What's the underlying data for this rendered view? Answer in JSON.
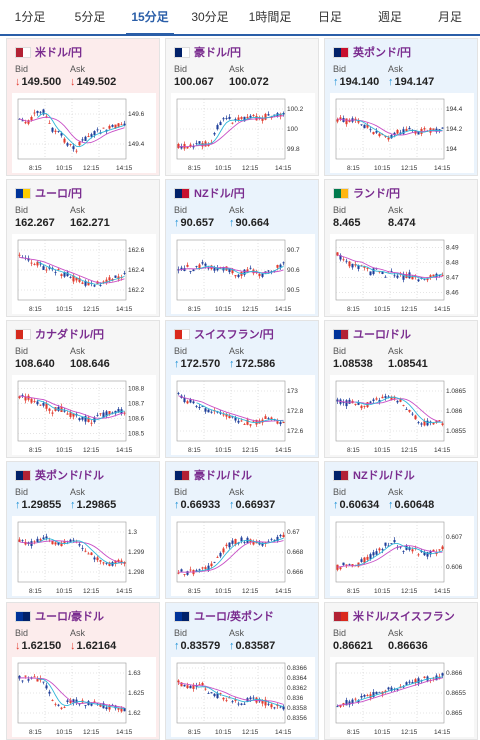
{
  "tabs": [
    "1分足",
    "5分足",
    "15分足",
    "30分足",
    "1時間足",
    "日足",
    "週足",
    "月足"
  ],
  "active_tab": 2,
  "bid_label": "Bid",
  "ask_label": "Ask",
  "time_labels": [
    "8:15",
    "10:15",
    "12:15",
    "14:15"
  ],
  "cards": [
    {
      "pair": "米ドル/円",
      "flag_colors": [
        "#b22234",
        "#ffffff"
      ],
      "direction": "down",
      "bid": "149.500",
      "ask": "149.502",
      "y_ticks": [
        "149.6",
        "149.4"
      ],
      "trend": [
        0.3,
        0.4,
        0.2,
        0.15,
        0.5,
        0.6,
        0.8,
        0.9,
        0.7,
        0.6,
        0.55,
        0.5,
        0.45,
        0.4
      ]
    },
    {
      "pair": "豪ドル/円",
      "flag_colors": [
        "#012169",
        "#ffffff"
      ],
      "direction": "neutral",
      "bid": "100.067",
      "ask": "100.072",
      "y_ticks": [
        "100.2",
        "100",
        "99.8"
      ],
      "trend": [
        0.85,
        0.85,
        0.8,
        0.8,
        0.78,
        0.4,
        0.3,
        0.35,
        0.3,
        0.25,
        0.3,
        0.25,
        0.2,
        0.2
      ]
    },
    {
      "pair": "英ポンド/円",
      "flag_colors": [
        "#012169",
        "#c8102e"
      ],
      "direction": "up",
      "bid": "194.140",
      "ask": "194.147",
      "y_ticks": [
        "194.4",
        "194.2",
        "194"
      ],
      "trend": [
        0.3,
        0.35,
        0.3,
        0.4,
        0.5,
        0.6,
        0.7,
        0.6,
        0.55,
        0.5,
        0.6,
        0.5,
        0.55,
        0.5
      ]
    },
    {
      "pair": "ユーロ/円",
      "flag_colors": [
        "#003399",
        "#ffcc00"
      ],
      "direction": "neutral",
      "bid": "162.267",
      "ask": "162.271",
      "y_ticks": [
        "162.6",
        "162.4",
        "162.2"
      ],
      "trend": [
        0.25,
        0.3,
        0.35,
        0.45,
        0.5,
        0.55,
        0.6,
        0.7,
        0.75,
        0.8,
        0.75,
        0.7,
        0.65,
        0.6
      ]
    },
    {
      "pair": "NZドル/円",
      "flag_colors": [
        "#012169",
        "#c8102e"
      ],
      "direction": "up",
      "bid": "90.657",
      "ask": "90.664",
      "y_ticks": [
        "90.7",
        "90.6",
        "90.5"
      ],
      "trend": [
        0.5,
        0.45,
        0.5,
        0.4,
        0.45,
        0.5,
        0.45,
        0.6,
        0.55,
        0.5,
        0.6,
        0.55,
        0.45,
        0.4
      ]
    },
    {
      "pair": "ランド/円",
      "flag_colors": [
        "#007a4d",
        "#ffb612"
      ],
      "direction": "neutral",
      "bid": "8.465",
      "ask": "8.474",
      "y_ticks": [
        "8.49",
        "8.48",
        "8.47",
        "8.46"
      ],
      "trend": [
        0.2,
        0.3,
        0.45,
        0.4,
        0.55,
        0.5,
        0.6,
        0.55,
        0.65,
        0.6,
        0.7,
        0.65,
        0.6,
        0.55
      ]
    },
    {
      "pair": "カナダドル/円",
      "flag_colors": [
        "#d52b1e",
        "#ffffff"
      ],
      "direction": "neutral",
      "bid": "108.640",
      "ask": "108.646",
      "y_ticks": [
        "108.8",
        "108.7",
        "108.6",
        "108.5"
      ],
      "trend": [
        0.2,
        0.25,
        0.3,
        0.35,
        0.5,
        0.45,
        0.55,
        0.6,
        0.65,
        0.7,
        0.6,
        0.55,
        0.5,
        0.5
      ]
    },
    {
      "pair": "スイスフラン/円",
      "flag_colors": [
        "#da291c",
        "#ffffff"
      ],
      "direction": "up",
      "bid": "172.570",
      "ask": "172.586",
      "y_ticks": [
        "173",
        "172.8",
        "172.6"
      ],
      "trend": [
        0.2,
        0.3,
        0.35,
        0.45,
        0.5,
        0.55,
        0.6,
        0.65,
        0.7,
        0.75,
        0.7,
        0.65,
        0.7,
        0.7
      ]
    },
    {
      "pair": "ユーロ/ドル",
      "flag_colors": [
        "#003399",
        "#b22234"
      ],
      "direction": "neutral",
      "bid": "1.08538",
      "ask": "1.08541",
      "y_ticks": [
        "1.0865",
        "1.086",
        "1.0855"
      ],
      "trend": [
        0.3,
        0.35,
        0.3,
        0.4,
        0.35,
        0.3,
        0.2,
        0.25,
        0.3,
        0.5,
        0.7,
        0.75,
        0.7,
        0.75
      ]
    },
    {
      "pair": "英ポンド/ドル",
      "flag_colors": [
        "#012169",
        "#b22234"
      ],
      "direction": "up",
      "bid": "1.29855",
      "ask": "1.29865",
      "y_ticks": [
        "1.3",
        "1.299",
        "1.298"
      ],
      "trend": [
        0.3,
        0.35,
        0.3,
        0.2,
        0.3,
        0.35,
        0.3,
        0.25,
        0.4,
        0.55,
        0.7,
        0.75,
        0.7,
        0.72
      ]
    },
    {
      "pair": "豪ドル/ドル",
      "flag_colors": [
        "#012169",
        "#b22234"
      ],
      "direction": "up",
      "bid": "0.66933",
      "ask": "0.66937",
      "y_ticks": [
        "0.67",
        "0.668",
        "0.666"
      ],
      "trend": [
        0.9,
        0.9,
        0.88,
        0.85,
        0.8,
        0.6,
        0.4,
        0.3,
        0.25,
        0.3,
        0.35,
        0.3,
        0.25,
        0.2
      ]
    },
    {
      "pair": "NZドル/ドル",
      "flag_colors": [
        "#012169",
        "#b22234"
      ],
      "direction": "up",
      "bid": "0.60634",
      "ask": "0.60648",
      "y_ticks": [
        "0.607",
        "0.606"
      ],
      "trend": [
        0.8,
        0.75,
        0.78,
        0.7,
        0.6,
        0.5,
        0.35,
        0.3,
        0.45,
        0.4,
        0.5,
        0.55,
        0.5,
        0.45
      ]
    },
    {
      "pair": "ユーロ/豪ドル",
      "flag_colors": [
        "#003399",
        "#012169"
      ],
      "direction": "down",
      "bid": "1.62150",
      "ask": "1.62164",
      "y_ticks": [
        "1.63",
        "1.625",
        "1.62"
      ],
      "trend": [
        0.2,
        0.2,
        0.22,
        0.25,
        0.6,
        0.8,
        0.7,
        0.65,
        0.7,
        0.72,
        0.75,
        0.78,
        0.8,
        0.82
      ]
    },
    {
      "pair": "ユーロ/英ポンド",
      "flag_colors": [
        "#003399",
        "#012169"
      ],
      "direction": "up",
      "bid": "0.83579",
      "ask": "0.83587",
      "y_ticks": [
        "0.8366",
        "0.8364",
        "0.8362",
        "0.836",
        "0.8358",
        "0.8356"
      ],
      "trend": [
        0.3,
        0.35,
        0.4,
        0.35,
        0.5,
        0.55,
        0.6,
        0.65,
        0.7,
        0.6,
        0.65,
        0.7,
        0.75,
        0.8
      ]
    },
    {
      "pair": "米ドル/スイスフラン",
      "flag_colors": [
        "#b22234",
        "#da291c"
      ],
      "direction": "neutral",
      "bid": "0.86621",
      "ask": "0.86636",
      "y_ticks": [
        "0.866",
        "0.8655",
        "0.865"
      ],
      "trend": [
        0.75,
        0.7,
        0.65,
        0.6,
        0.55,
        0.5,
        0.45,
        0.4,
        0.35,
        0.3,
        0.25,
        0.2,
        0.2,
        0.15
      ]
    }
  ]
}
